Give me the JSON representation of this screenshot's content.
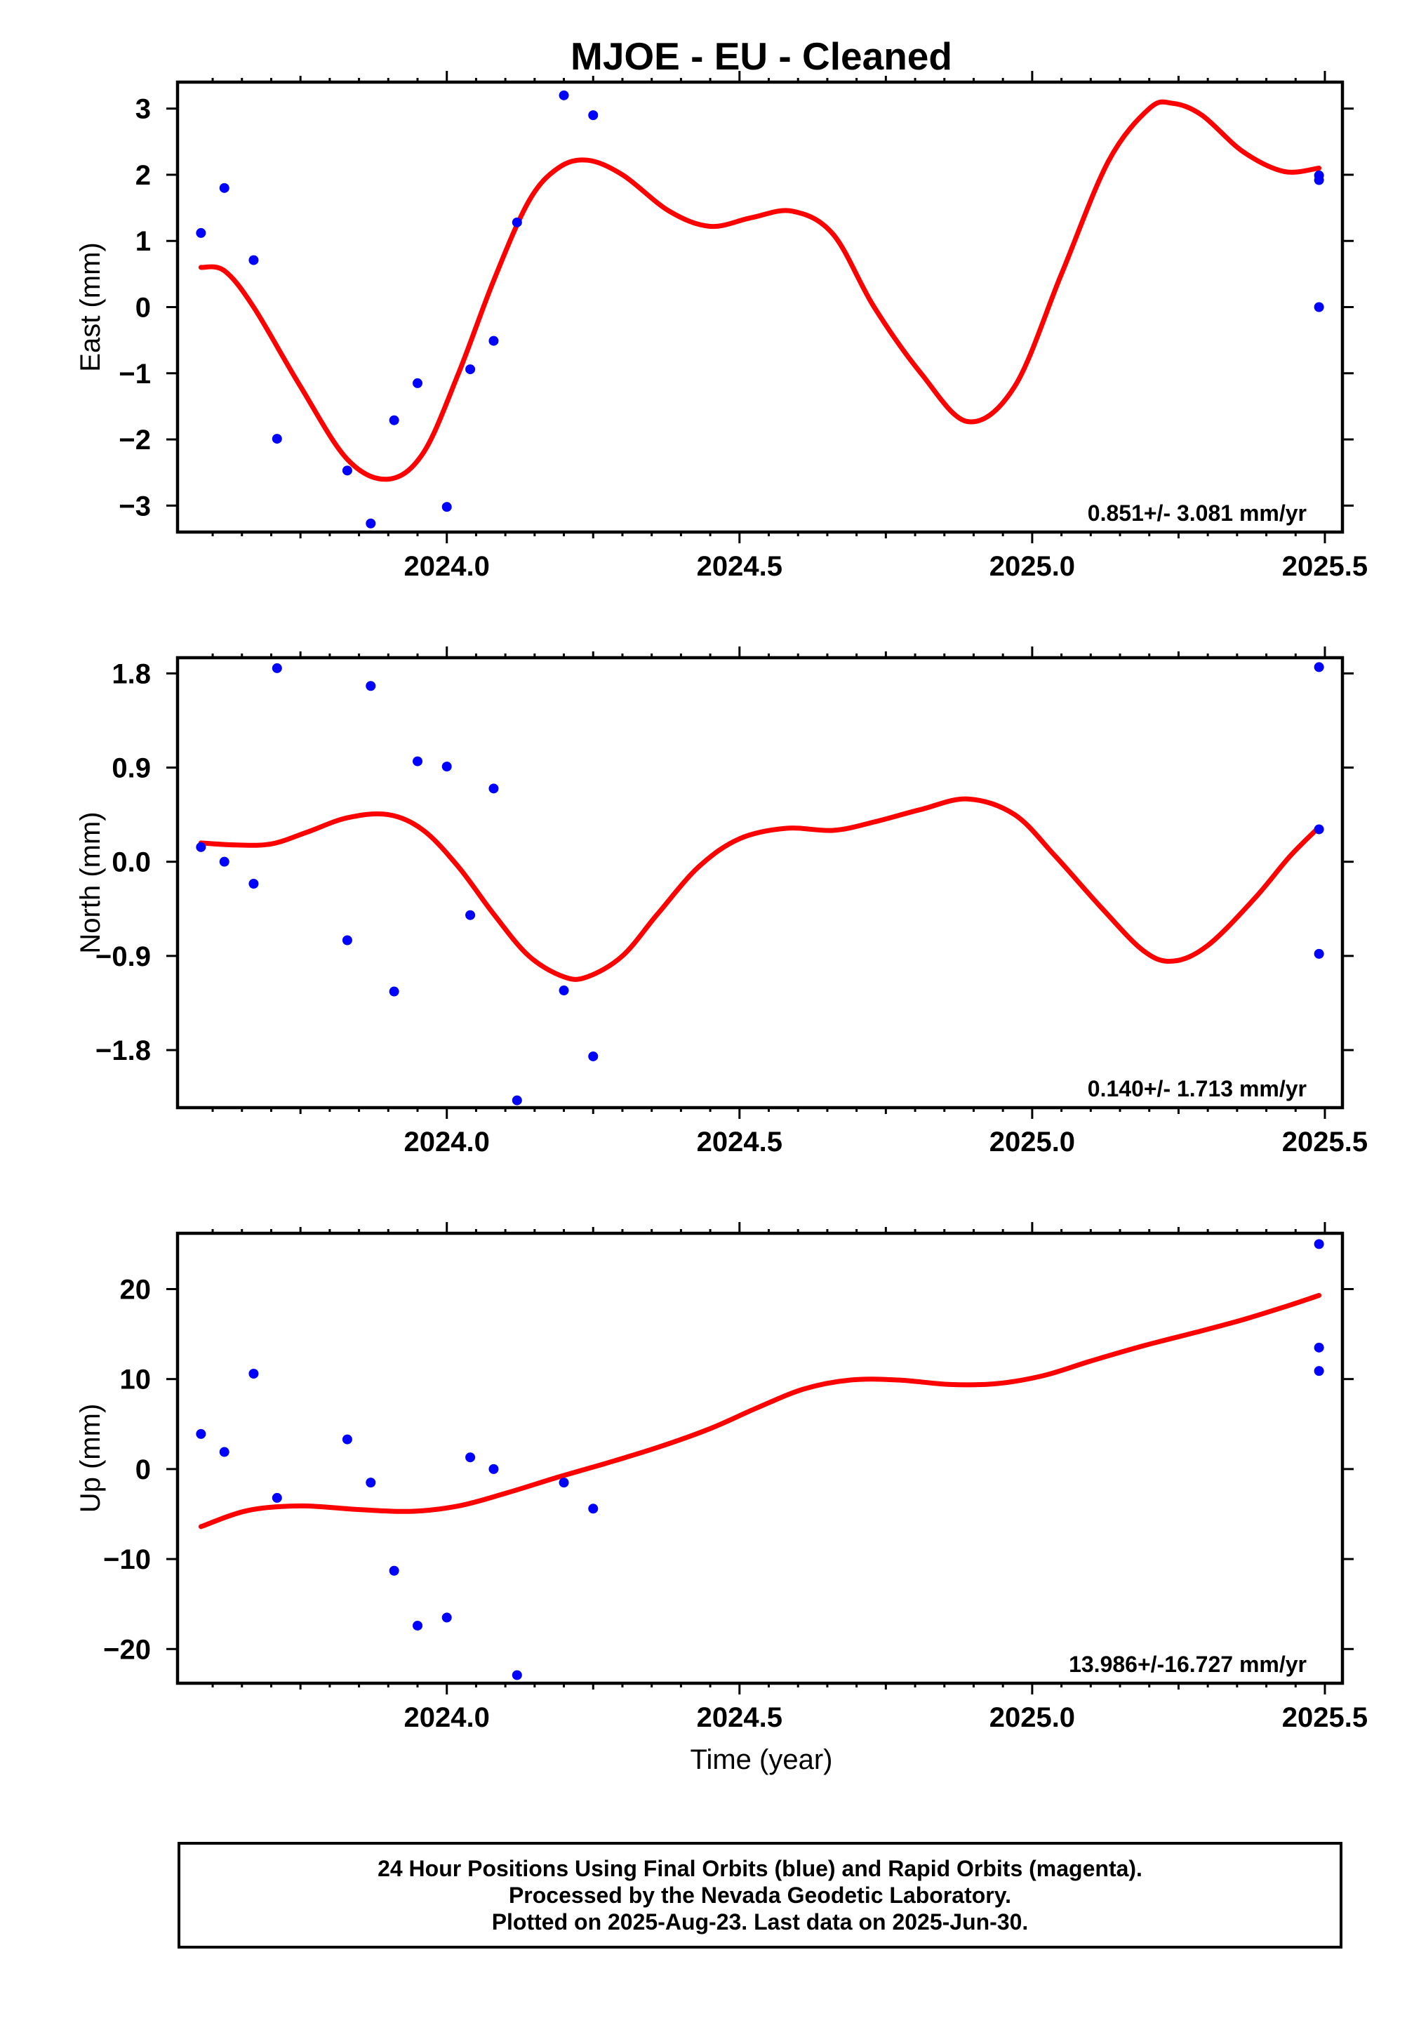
{
  "title": "MJOE  - EU - Cleaned",
  "xlabel": "Time (year)",
  "footer": {
    "line1": "24 Hour Positions Using Final Orbits (blue) and Rapid Orbits (magenta).",
    "line2": "Processed by the Nevada Geodetic Laboratory.",
    "line3": "Plotted on 2025-Aug-23. Last data on 2025-Jun-30."
  },
  "colors": {
    "points": "#0000ff",
    "fit": "#ff0000",
    "frame": "#000000"
  },
  "chart_data": [
    {
      "type": "scatter",
      "ylabel": "East (mm)",
      "rate": "0.851+/- 3.081 mm/yr",
      "xlim": [
        2023.54,
        2025.53
      ],
      "ylim": [
        -3.4,
        3.4
      ],
      "yticks": [
        3,
        2,
        1,
        0,
        -1,
        -2,
        -3
      ],
      "ytick_labels": [
        "3",
        "2",
        "1",
        "0",
        "−1",
        "−2",
        "−3"
      ],
      "xticks": [
        2024.0,
        2024.5,
        2025.0,
        2025.5
      ],
      "xtick_labels": [
        "2024.0",
        "2024.5",
        "2025.0",
        "2025.5"
      ],
      "points": {
        "x": [
          2023.58,
          2023.62,
          2023.67,
          2023.71,
          2023.83,
          2023.87,
          2023.91,
          2023.95,
          2024.0,
          2024.04,
          2024.08,
          2024.12,
          2024.2,
          2024.25,
          2025.49,
          2025.49,
          2025.49
        ],
        "y": [
          1.12,
          1.8,
          0.71,
          -1.99,
          -2.47,
          -3.27,
          -1.71,
          -1.15,
          -3.02,
          -0.94,
          -0.51,
          1.28,
          3.2,
          2.9,
          1.99,
          1.92,
          0.0
        ]
      },
      "fit": {
        "x": [
          2023.58,
          2023.62,
          2023.67,
          2023.75,
          2023.83,
          2023.9,
          2023.96,
          2024.02,
          2024.08,
          2024.14,
          2024.19,
          2024.24,
          2024.3,
          2024.38,
          2024.45,
          2024.52,
          2024.59,
          2024.66,
          2024.73,
          2024.81,
          2024.89,
          2024.97,
          2025.05,
          2025.13,
          2025.2,
          2025.24,
          2025.29,
          2025.36,
          2025.43,
          2025.49
        ],
        "y": [
          0.6,
          0.55,
          0.0,
          -1.2,
          -2.3,
          -2.6,
          -2.2,
          -1.0,
          0.4,
          1.6,
          2.1,
          2.22,
          2.0,
          1.45,
          1.22,
          1.35,
          1.45,
          1.1,
          0.0,
          -1.0,
          -1.73,
          -1.2,
          0.5,
          2.2,
          3.0,
          3.08,
          2.9,
          2.35,
          2.05,
          2.1
        ]
      }
    },
    {
      "type": "scatter",
      "ylabel": "North (mm)",
      "rate": "0.140+/- 1.713 mm/yr",
      "xlim": [
        2023.54,
        2025.53
      ],
      "ylim": [
        -2.35,
        1.95
      ],
      "yticks": [
        1.8,
        0.9,
        0.0,
        -0.9,
        -1.8
      ],
      "ytick_labels": [
        "1.8",
        "0.9",
        "0.0",
        "−0.9",
        "−1.8"
      ],
      "xticks": [
        2024.0,
        2024.5,
        2025.0,
        2025.5
      ],
      "xtick_labels": [
        "2024.0",
        "2024.5",
        "2025.0",
        "2025.5"
      ],
      "points": {
        "x": [
          2023.58,
          2023.62,
          2023.67,
          2023.71,
          2023.83,
          2023.87,
          2023.91,
          2023.95,
          2024.0,
          2024.04,
          2024.08,
          2024.12,
          2024.2,
          2024.25,
          2025.49,
          2025.49,
          2025.49
        ],
        "y": [
          0.14,
          0.0,
          -0.21,
          1.85,
          -0.75,
          1.68,
          -1.24,
          0.96,
          0.91,
          -0.51,
          0.7,
          -2.28,
          -1.23,
          -1.86,
          1.86,
          0.31,
          -0.88
        ]
      },
      "fit": {
        "x": [
          2023.58,
          2023.64,
          2023.7,
          2023.76,
          2023.83,
          2023.9,
          2023.96,
          2024.02,
          2024.08,
          2024.14,
          2024.2,
          2024.24,
          2024.3,
          2024.36,
          2024.43,
          2024.5,
          2024.58,
          2024.66,
          2024.73,
          2024.81,
          2024.89,
          2024.97,
          2025.04,
          2025.12,
          2025.19,
          2025.24,
          2025.3,
          2025.38,
          2025.44,
          2025.49
        ],
        "y": [
          0.18,
          0.16,
          0.17,
          0.28,
          0.42,
          0.45,
          0.3,
          -0.05,
          -0.5,
          -0.9,
          -1.1,
          -1.1,
          -0.9,
          -0.5,
          -0.05,
          0.22,
          0.32,
          0.3,
          0.38,
          0.5,
          0.6,
          0.45,
          0.05,
          -0.45,
          -0.85,
          -0.95,
          -0.8,
          -0.35,
          0.05,
          0.33
        ]
      }
    },
    {
      "type": "scatter",
      "ylabel": "Up (mm)",
      "rate": "13.986+/-16.727 mm/yr",
      "xlim": [
        2023.54,
        2025.53
      ],
      "ylim": [
        -23.8,
        26.2
      ],
      "yticks": [
        20,
        10,
        0,
        -10,
        -20
      ],
      "ytick_labels": [
        "20",
        "10",
        "0",
        "−10",
        "−20"
      ],
      "xticks": [
        2024.0,
        2024.5,
        2025.0,
        2025.5
      ],
      "xtick_labels": [
        "2024.0",
        "2024.5",
        "2025.0",
        "2025.5"
      ],
      "points": {
        "x": [
          2023.58,
          2023.62,
          2023.67,
          2023.71,
          2023.83,
          2023.87,
          2023.91,
          2023.95,
          2024.0,
          2024.04,
          2024.08,
          2024.12,
          2024.2,
          2024.25,
          2025.49,
          2025.49,
          2025.49
        ],
        "y": [
          3.9,
          1.9,
          10.6,
          -3.2,
          3.3,
          -1.5,
          -11.3,
          -17.4,
          -16.5,
          1.3,
          0.0,
          -22.9,
          -1.5,
          -4.4,
          25.0,
          13.5,
          10.9
        ]
      },
      "fit": {
        "x": [
          2023.58,
          2023.66,
          2023.75,
          2023.85,
          2023.94,
          2024.02,
          2024.1,
          2024.19,
          2024.27,
          2024.36,
          2024.45,
          2024.53,
          2024.61,
          2024.69,
          2024.77,
          2024.86,
          2024.94,
          2025.02,
          2025.1,
          2025.19,
          2025.28,
          2025.36,
          2025.43,
          2025.49
        ],
        "y": [
          -6.4,
          -4.6,
          -4.1,
          -4.5,
          -4.7,
          -4.1,
          -2.7,
          -0.9,
          0.6,
          2.4,
          4.5,
          6.8,
          8.9,
          9.9,
          9.9,
          9.4,
          9.5,
          10.4,
          12.0,
          13.7,
          15.2,
          16.6,
          18.0,
          19.3
        ]
      }
    }
  ]
}
